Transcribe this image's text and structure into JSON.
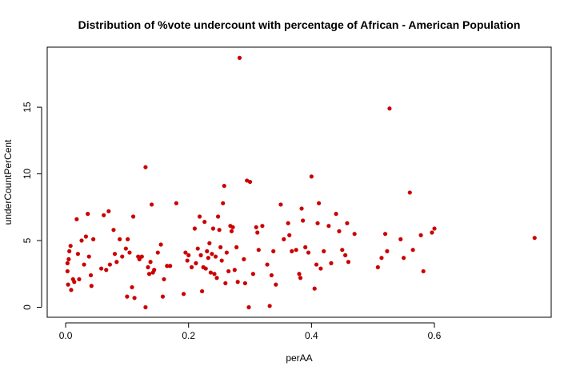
{
  "chart_data": {
    "type": "scatter",
    "title": "Distribution of %vote undercount with percentage of African - American Population",
    "xlabel": "perAA",
    "ylabel": "underCountPerCent",
    "xlim": [
      -0.03,
      0.79
    ],
    "ylim": [
      -0.75,
      19.5
    ],
    "xticks": [
      0.0,
      0.2,
      0.4,
      0.6
    ],
    "xtick_labels": [
      "0.0",
      "0.2",
      "0.4",
      "0.6"
    ],
    "yticks": [
      0,
      5,
      10,
      15
    ],
    "ytick_labels": [
      "0",
      "5",
      "10",
      "15"
    ],
    "grid": false,
    "legend": "none",
    "point_color": "#cc0000",
    "points": [
      [
        0.003,
        3.3
      ],
      [
        0.003,
        2.7
      ],
      [
        0.004,
        1.7
      ],
      [
        0.005,
        3.6
      ],
      [
        0.006,
        4.2
      ],
      [
        0.008,
        4.6
      ],
      [
        0.009,
        1.3
      ],
      [
        0.012,
        2.1
      ],
      [
        0.014,
        1.9
      ],
      [
        0.018,
        6.6
      ],
      [
        0.02,
        4.0
      ],
      [
        0.022,
        2.1
      ],
      [
        0.026,
        5.0
      ],
      [
        0.03,
        3.2
      ],
      [
        0.033,
        5.3
      ],
      [
        0.036,
        7.0
      ],
      [
        0.038,
        3.8
      ],
      [
        0.041,
        2.4
      ],
      [
        0.042,
        1.6
      ],
      [
        0.045,
        5.1
      ],
      [
        0.058,
        2.9
      ],
      [
        0.062,
        6.9
      ],
      [
        0.066,
        2.8
      ],
      [
        0.07,
        7.2
      ],
      [
        0.072,
        3.2
      ],
      [
        0.078,
        5.8
      ],
      [
        0.08,
        4.0
      ],
      [
        0.083,
        3.4
      ],
      [
        0.088,
        5.1
      ],
      [
        0.092,
        3.8
      ],
      [
        0.098,
        4.4
      ],
      [
        0.1,
        0.8
      ],
      [
        0.101,
        5.1
      ],
      [
        0.104,
        4.1
      ],
      [
        0.108,
        1.5
      ],
      [
        0.11,
        6.8
      ],
      [
        0.112,
        0.7
      ],
      [
        0.118,
        3.8
      ],
      [
        0.12,
        3.6
      ],
      [
        0.124,
        3.8
      ],
      [
        0.13,
        0.0
      ],
      [
        0.13,
        10.5
      ],
      [
        0.134,
        3.0
      ],
      [
        0.136,
        2.5
      ],
      [
        0.138,
        3.4
      ],
      [
        0.14,
        7.7
      ],
      [
        0.142,
        2.6
      ],
      [
        0.144,
        2.8
      ],
      [
        0.15,
        4.1
      ],
      [
        0.155,
        4.7
      ],
      [
        0.158,
        0.8
      ],
      [
        0.16,
        2.1
      ],
      [
        0.165,
        3.1
      ],
      [
        0.17,
        3.1
      ],
      [
        0.18,
        7.8
      ],
      [
        0.192,
        1.0
      ],
      [
        0.195,
        4.1
      ],
      [
        0.198,
        3.5
      ],
      [
        0.2,
        3.9
      ],
      [
        0.205,
        3.0
      ],
      [
        0.21,
        5.9
      ],
      [
        0.212,
        3.3
      ],
      [
        0.215,
        4.4
      ],
      [
        0.218,
        6.8
      ],
      [
        0.22,
        3.9
      ],
      [
        0.222,
        1.2
      ],
      [
        0.224,
        3.0
      ],
      [
        0.226,
        6.4
      ],
      [
        0.228,
        2.9
      ],
      [
        0.23,
        4.2
      ],
      [
        0.232,
        3.7
      ],
      [
        0.234,
        4.8
      ],
      [
        0.236,
        2.6
      ],
      [
        0.238,
        4.0
      ],
      [
        0.24,
        5.9
      ],
      [
        0.242,
        2.5
      ],
      [
        0.244,
        3.8
      ],
      [
        0.246,
        2.2
      ],
      [
        0.248,
        6.8
      ],
      [
        0.25,
        5.8
      ],
      [
        0.252,
        4.5
      ],
      [
        0.254,
        3.5
      ],
      [
        0.256,
        7.8
      ],
      [
        0.258,
        9.1
      ],
      [
        0.26,
        1.8
      ],
      [
        0.262,
        4.1
      ],
      [
        0.265,
        2.7
      ],
      [
        0.268,
        6.1
      ],
      [
        0.27,
        5.7
      ],
      [
        0.272,
        6.0
      ],
      [
        0.275,
        2.8
      ],
      [
        0.278,
        4.5
      ],
      [
        0.28,
        1.9
      ],
      [
        0.283,
        18.7
      ],
      [
        0.29,
        3.6
      ],
      [
        0.292,
        1.8
      ],
      [
        0.295,
        9.5
      ],
      [
        0.298,
        0.0
      ],
      [
        0.3,
        9.4
      ],
      [
        0.305,
        2.5
      ],
      [
        0.31,
        6.0
      ],
      [
        0.312,
        5.6
      ],
      [
        0.314,
        4.3
      ],
      [
        0.32,
        6.1
      ],
      [
        0.328,
        3.2
      ],
      [
        0.332,
        0.1
      ],
      [
        0.335,
        2.4
      ],
      [
        0.338,
        4.2
      ],
      [
        0.342,
        1.7
      ],
      [
        0.35,
        7.7
      ],
      [
        0.355,
        5.1
      ],
      [
        0.362,
        6.3
      ],
      [
        0.364,
        5.4
      ],
      [
        0.368,
        4.2
      ],
      [
        0.375,
        4.3
      ],
      [
        0.38,
        2.5
      ],
      [
        0.382,
        2.2
      ],
      [
        0.384,
        7.4
      ],
      [
        0.386,
        6.5
      ],
      [
        0.39,
        4.5
      ],
      [
        0.395,
        4.1
      ],
      [
        0.4,
        9.8
      ],
      [
        0.405,
        1.4
      ],
      [
        0.408,
        3.2
      ],
      [
        0.41,
        6.3
      ],
      [
        0.412,
        7.8
      ],
      [
        0.415,
        2.9
      ],
      [
        0.42,
        4.2
      ],
      [
        0.428,
        6.1
      ],
      [
        0.432,
        3.3
      ],
      [
        0.44,
        7.0
      ],
      [
        0.445,
        5.7
      ],
      [
        0.45,
        4.3
      ],
      [
        0.455,
        3.9
      ],
      [
        0.458,
        6.3
      ],
      [
        0.46,
        3.4
      ],
      [
        0.47,
        5.5
      ],
      [
        0.508,
        3.0
      ],
      [
        0.514,
        3.7
      ],
      [
        0.52,
        5.5
      ],
      [
        0.523,
        4.2
      ],
      [
        0.527,
        14.9
      ],
      [
        0.545,
        5.1
      ],
      [
        0.55,
        3.7
      ],
      [
        0.56,
        8.6
      ],
      [
        0.565,
        4.3
      ],
      [
        0.578,
        5.4
      ],
      [
        0.582,
        2.7
      ],
      [
        0.596,
        5.6
      ],
      [
        0.6,
        5.9
      ],
      [
        0.763,
        5.2
      ]
    ]
  }
}
